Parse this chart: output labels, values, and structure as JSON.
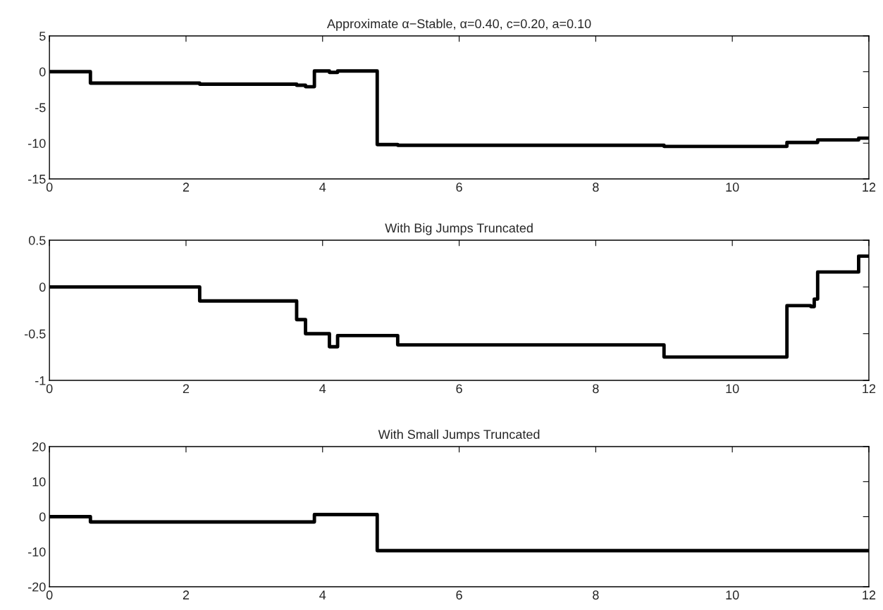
{
  "chart_data": [
    {
      "type": "step",
      "title": "Approximate α−Stable, α=0.40, c=0.20, a=0.10",
      "x": [
        0,
        0.6,
        2.2,
        3.62,
        3.75,
        3.88,
        4.1,
        4.22,
        4.8,
        5.1,
        9.0,
        10.8,
        11.25,
        11.85,
        12
      ],
      "series": [
        {
          "color": "#000000",
          "values": [
            0,
            -1.6,
            -1.75,
            -1.9,
            -2.1,
            0.1,
            -0.1,
            0.1,
            -10.2,
            -10.3,
            -10.45,
            -9.9,
            -9.55,
            -9.3,
            -9.3
          ]
        }
      ],
      "xlim": [
        0,
        12
      ],
      "xticks": [
        0,
        2,
        4,
        6,
        8,
        10,
        12
      ],
      "ylim": [
        -15,
        5
      ],
      "yticks": [
        -15,
        -10,
        -5,
        0,
        5
      ],
      "grid": false,
      "legend": false
    },
    {
      "type": "step",
      "title": "With Big Jumps Truncated",
      "x": [
        0,
        2.2,
        3.62,
        3.75,
        4.1,
        4.22,
        5.1,
        9.0,
        10.8,
        11.15,
        11.2,
        11.25,
        11.85,
        12
      ],
      "series": [
        {
          "color": "#000000",
          "values": [
            0,
            -0.15,
            -0.35,
            -0.5,
            -0.64,
            -0.52,
            -0.62,
            -0.75,
            -0.2,
            -0.21,
            -0.13,
            0.16,
            0.33,
            0.33
          ]
        }
      ],
      "xlim": [
        0,
        12
      ],
      "xticks": [
        0,
        2,
        4,
        6,
        8,
        10,
        12
      ],
      "ylim": [
        -1,
        0.5
      ],
      "yticks": [
        -1,
        -0.5,
        0,
        0.5
      ],
      "grid": false,
      "legend": false
    },
    {
      "type": "step",
      "title": "With Small Jumps Truncated",
      "x": [
        0,
        0.6,
        3.88,
        4.8,
        12
      ],
      "series": [
        {
          "color": "#000000",
          "values": [
            0,
            -1.5,
            0.6,
            -9.7,
            -9.7
          ]
        }
      ],
      "xlim": [
        0,
        12
      ],
      "xticks": [
        0,
        2,
        4,
        6,
        8,
        10,
        12
      ],
      "ylim": [
        -20,
        20
      ],
      "yticks": [
        -20,
        -10,
        0,
        10,
        20
      ],
      "grid": false,
      "legend": false
    }
  ]
}
